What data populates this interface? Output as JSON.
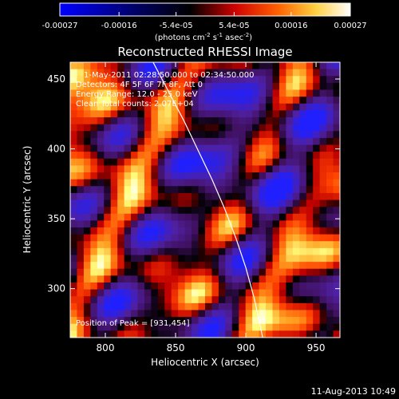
{
  "colorbar": {
    "tick_labels": [
      "-0.00027",
      "-0.00016",
      "-5.4e-05",
      "5.4e-05",
      "0.00016",
      "0.00027"
    ],
    "tick_values": [
      -0.00027,
      -0.00016,
      -5.4e-05,
      5.4e-05,
      0.00016,
      0.00027
    ],
    "range": [
      -0.00027,
      0.00027
    ],
    "unit_text": "(photons cm",
    "unit_exp1": "-2",
    "unit_mid": " s",
    "unit_exp2": "-1",
    "unit_end": " asec",
    "unit_exp3": "-2",
    "unit_close": ")"
  },
  "chart_data": {
    "type": "heatmap",
    "title": "Reconstructed RHESSI Image",
    "xlabel": "Heliocentric X (arcsec)",
    "ylabel": "Heliocentric Y (arcsec)",
    "xlim": [
      775,
      967
    ],
    "ylim": [
      265,
      462
    ],
    "x_ticks": [
      800,
      850,
      900,
      950
    ],
    "y_ticks": [
      300,
      350,
      400,
      450
    ],
    "x_tick_labels": [
      "800",
      "850",
      "900",
      "950"
    ],
    "y_tick_labels": [
      "300",
      "350",
      "400",
      "450"
    ],
    "colormap": [
      "#0000ff",
      "#000000",
      "#ff0000",
      "#ff8000",
      "#ffff80",
      "#ffffff"
    ],
    "limb_curve": {
      "x": [
        834,
        845,
        856,
        866,
        876,
        885,
        893,
        900,
        906,
        912
      ],
      "y": [
        462,
        441,
        420,
        399,
        378,
        357,
        336,
        315,
        293,
        265
      ]
    },
    "peak": [
      931,
      454
    ],
    "annotations": {
      "time": "1-May-2011 02:28:50.000 to 02:34:50.000",
      "detectors": "Detectors: 4F 5F 6F 7F 8F, Att 0",
      "energy": "Energy Range: 12.0 - 25.0 keV",
      "clean": "Clean    Total counts: 2.07E+04",
      "peak_label": "Position of Peak = [931,454]"
    }
  },
  "footer": {
    "timestamp": "11-Aug-2013 10:49"
  }
}
